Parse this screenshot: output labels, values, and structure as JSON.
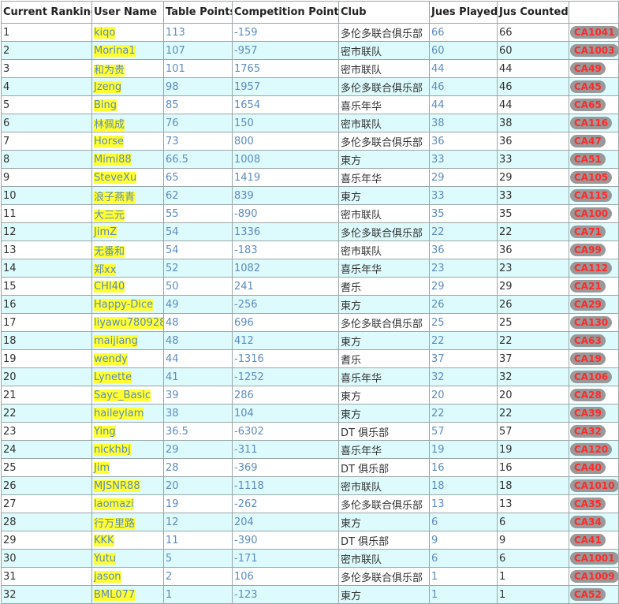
{
  "headers": [
    "Current Ranking",
    "User Name",
    "Table Points",
    "Competition Points",
    "Club",
    "Jues Played",
    "Jus Counted",
    ""
  ],
  "rows": [
    {
      "rank": "1",
      "user": "kiqo",
      "tp": "113",
      "cp": "-159",
      "club": "多伦多联合俱乐部",
      "played": "66",
      "counted": "66",
      "badge": "CA1041"
    },
    {
      "rank": "2",
      "user": "Morina1",
      "tp": "107",
      "cp": "-957",
      "club": "密市联队",
      "played": "60",
      "counted": "60",
      "badge": "CA1003"
    },
    {
      "rank": "3",
      "user": "和为贵",
      "tp": "101",
      "cp": "1765",
      "club": "密市联队",
      "played": "44",
      "counted": "44",
      "badge": "CA49"
    },
    {
      "rank": "4",
      "user": "Jzeng",
      "tp": "98",
      "cp": "1957",
      "club": "多伦多联合俱乐部",
      "played": "46",
      "counted": "46",
      "badge": "CA45"
    },
    {
      "rank": "5",
      "user": "Bing",
      "tp": "85",
      "cp": "1654",
      "club": "喜乐年华",
      "played": "44",
      "counted": "44",
      "badge": "CA65"
    },
    {
      "rank": "6",
      "user": "林佩成",
      "tp": "76",
      "cp": "150",
      "club": "密市联队",
      "played": "38",
      "counted": "38",
      "badge": "CA116"
    },
    {
      "rank": "7",
      "user": "Horse",
      "tp": "73",
      "cp": "800",
      "club": "多伦多联合俱乐部",
      "played": "36",
      "counted": "36",
      "badge": "CA47"
    },
    {
      "rank": "8",
      "user": "Mimi88",
      "tp": "66.5",
      "cp": "1008",
      "club": "東方",
      "played": "33",
      "counted": "33",
      "badge": "CA51"
    },
    {
      "rank": "9",
      "user": "SteveXu",
      "tp": "65",
      "cp": "1419",
      "club": "喜乐年华",
      "played": "29",
      "counted": "29",
      "badge": "CA105"
    },
    {
      "rank": "10",
      "user": "浪子燕青",
      "tp": "62",
      "cp": "839",
      "club": "東方",
      "played": "33",
      "counted": "33",
      "badge": "CA115"
    },
    {
      "rank": "11",
      "user": "大三元",
      "tp": "55",
      "cp": "-890",
      "club": "密市联队",
      "played": "35",
      "counted": "35",
      "badge": "CA100"
    },
    {
      "rank": "12",
      "user": "JimZ",
      "tp": "54",
      "cp": "1336",
      "club": "多伦多联合俱乐部",
      "played": "22",
      "counted": "22",
      "badge": "CA71"
    },
    {
      "rank": "13",
      "user": "无番和",
      "tp": "54",
      "cp": "-183",
      "club": "密市联队",
      "played": "36",
      "counted": "36",
      "badge": "CA99"
    },
    {
      "rank": "14",
      "user": "郑xx",
      "tp": "52",
      "cp": "1082",
      "club": "喜乐年华",
      "played": "23",
      "counted": "23",
      "badge": "CA112"
    },
    {
      "rank": "15",
      "user": "CHI40",
      "tp": "50",
      "cp": "241",
      "club": "耆乐",
      "played": "29",
      "counted": "29",
      "badge": "CA21"
    },
    {
      "rank": "16",
      "user": "Happy-Dice",
      "tp": "49",
      "cp": "-256",
      "club": "東方",
      "played": "26",
      "counted": "26",
      "badge": "CA29"
    },
    {
      "rank": "17",
      "user": "liyawu780928",
      "tp": "48",
      "cp": "696",
      "club": "多伦多联合俱乐部",
      "played": "25",
      "counted": "25",
      "badge": "CA130"
    },
    {
      "rank": "18",
      "user": "maijiang",
      "tp": "48",
      "cp": "412",
      "club": "東方",
      "played": "22",
      "counted": "22",
      "badge": "CA63"
    },
    {
      "rank": "19",
      "user": "wendy",
      "tp": "44",
      "cp": "-1316",
      "club": "耆乐",
      "played": "37",
      "counted": "37",
      "badge": "CA19"
    },
    {
      "rank": "20",
      "user": "Lynette",
      "tp": "41",
      "cp": "-1252",
      "club": "喜乐年华",
      "played": "32",
      "counted": "32",
      "badge": "CA106"
    },
    {
      "rank": "21",
      "user": "Sayc_Basic",
      "tp": "39",
      "cp": "286",
      "club": "東方",
      "played": "20",
      "counted": "20",
      "badge": "CA28"
    },
    {
      "rank": "22",
      "user": "haileylam",
      "tp": "38",
      "cp": "104",
      "club": "東方",
      "played": "22",
      "counted": "22",
      "badge": "CA39"
    },
    {
      "rank": "23",
      "user": "Ying",
      "tp": "36.5",
      "cp": "-6302",
      "club": "DT 俱乐部",
      "played": "57",
      "counted": "57",
      "badge": "CA32"
    },
    {
      "rank": "24",
      "user": "nickhbj",
      "tp": "29",
      "cp": "-311",
      "club": "喜乐年华",
      "played": "19",
      "counted": "19",
      "badge": "CA120"
    },
    {
      "rank": "25",
      "user": "Jim",
      "tp": "28",
      "cp": "-369",
      "club": "DT 俱乐部",
      "played": "16",
      "counted": "16",
      "badge": "CA40"
    },
    {
      "rank": "26",
      "user": "MJSNR88",
      "tp": "20",
      "cp": "-1118",
      "club": "密市联队",
      "played": "18",
      "counted": "18",
      "badge": "CA1010"
    },
    {
      "rank": "27",
      "user": "laomazi",
      "tp": "19",
      "cp": "-262",
      "club": "多伦多联合俱乐部",
      "played": "13",
      "counted": "13",
      "badge": "CA35"
    },
    {
      "rank": "28",
      "user": "行万里路",
      "tp": "12",
      "cp": "204",
      "club": "東方",
      "played": "6",
      "counted": "6",
      "badge": "CA34"
    },
    {
      "rank": "29",
      "user": "KKK",
      "tp": "11",
      "cp": "-390",
      "club": "DT 俱乐部",
      "played": "9",
      "counted": "9",
      "badge": "CA41"
    },
    {
      "rank": "30",
      "user": "Yutu",
      "tp": "5",
      "cp": "-171",
      "club": "密市联队",
      "played": "6",
      "counted": "6",
      "badge": "CA1001"
    },
    {
      "rank": "31",
      "user": "jason",
      "tp": "2",
      "cp": "106",
      "club": "多伦多联合俱乐部",
      "played": "1",
      "counted": "1",
      "badge": "CA1009"
    },
    {
      "rank": "32",
      "user": "BML077",
      "tp": "1",
      "cp": "-123",
      "club": "東方",
      "played": "1",
      "counted": "1",
      "badge": "CA52"
    }
  ]
}
